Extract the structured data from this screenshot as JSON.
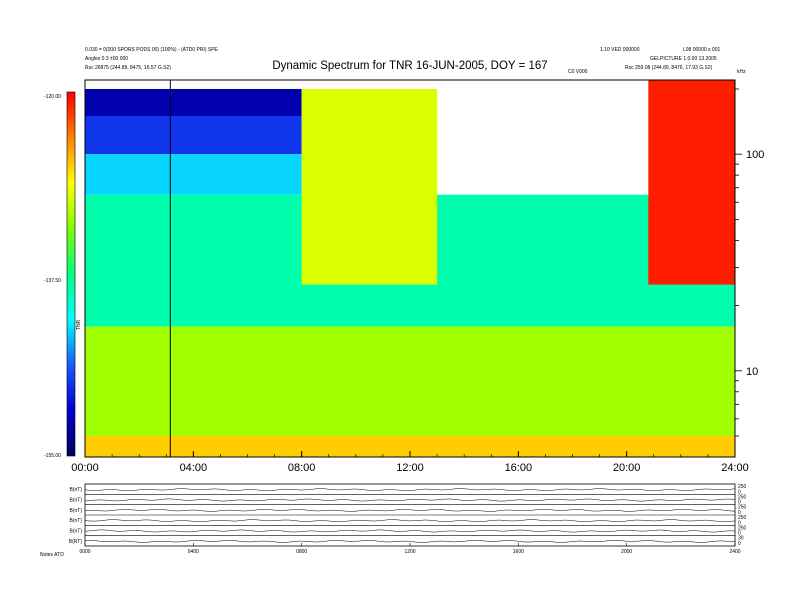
{
  "header": {
    "left_line1": "0.030 = 0(000 SPORS PODS 00) (100%) - (ATD0 PRI) SPE",
    "left_line2": "Angles 0.3 ±00 000",
    "left_line3": "Rsc    26875 (244.89, 8475, 16.57 G.S2)",
    "right_line1": "1.10 VED 000000",
    "right_line2": "L08 00000 s 001",
    "right_line3": "GELPICTURE 1.0.00 13.2005",
    "right_line4": "Rsc    259.08 (244.89, 8476, 17.93 G.S2)",
    "top_axis_mark": "C0 V000",
    "top_right_unit": "kHz"
  },
  "colorbar": {
    "top_label": "-120.00",
    "mid_label": "-137.50",
    "bottom_label": "-155.00",
    "axis_label": "TNR",
    "colors": [
      "#000060",
      "#0000d0",
      "#1a5aff",
      "#00ffff",
      "#00ff80",
      "#80ff00",
      "#ffff00",
      "#ff8000",
      "#ff0000"
    ]
  },
  "chart_data": {
    "type": "heatmap",
    "title": "Dynamic Spectrum for TNR 16-JUN-2005, DOY = 167",
    "x_tick_labels": [
      "00:00",
      "04:00",
      "08:00",
      "12:00",
      "16:00",
      "20:00",
      "24:00"
    ],
    "x_range_hours": [
      0,
      24
    ],
    "y_scale": "log",
    "y_tick_labels": [
      "100",
      "10"
    ],
    "y_range_khz": [
      4,
      220
    ],
    "color_range_db": [
      -155,
      -120
    ],
    "marker_line_hour": 3.15,
    "features": [
      {
        "x_hours": [
          0,
          8
        ],
        "y_khz": [
          150,
          200
        ],
        "level_db": -152
      },
      {
        "x_hours": [
          0,
          8
        ],
        "y_khz": [
          100,
          150
        ],
        "level_db": -148
      },
      {
        "x_hours": [
          0,
          8
        ],
        "y_khz": [
          65,
          100
        ],
        "level_db": -143
      },
      {
        "x_hours": [
          0,
          24
        ],
        "y_khz": [
          16,
          65
        ],
        "level_db": -139
      },
      {
        "x_hours": [
          0,
          24
        ],
        "y_khz": [
          5,
          16
        ],
        "level_db": -132
      },
      {
        "x_hours": [
          0,
          24
        ],
        "y_khz": [
          4,
          5
        ],
        "level_db": -127
      },
      {
        "x_hours": [
          8,
          13
        ],
        "y_khz": [
          25,
          200
        ],
        "level_db": -130
      },
      {
        "x_hours": [
          20.8,
          24
        ],
        "y_khz": [
          25,
          220
        ],
        "level_db": -121
      }
    ]
  },
  "stack_plots": {
    "rows": [
      {
        "left_label": "B(nT)",
        "right_top": "250",
        "right_bottom": "0"
      },
      {
        "left_label": "B(nT)",
        "right_top": "250",
        "right_bottom": "0"
      },
      {
        "left_label": "B(nT)",
        "right_top": "250",
        "right_bottom": "0"
      },
      {
        "left_label": "B(nT)",
        "right_top": "250",
        "right_bottom": "0"
      },
      {
        "left_label": "B(nT)",
        "right_top": "250",
        "right_bottom": "0"
      },
      {
        "left_label": "B(RT)",
        "right_top": "30",
        "right_bottom": "0"
      }
    ],
    "x_tick_labels": [
      "0000",
      "0400",
      "0800",
      "1200",
      "1600",
      "2000",
      "2400"
    ],
    "footer_label": "Notes   ATD"
  }
}
